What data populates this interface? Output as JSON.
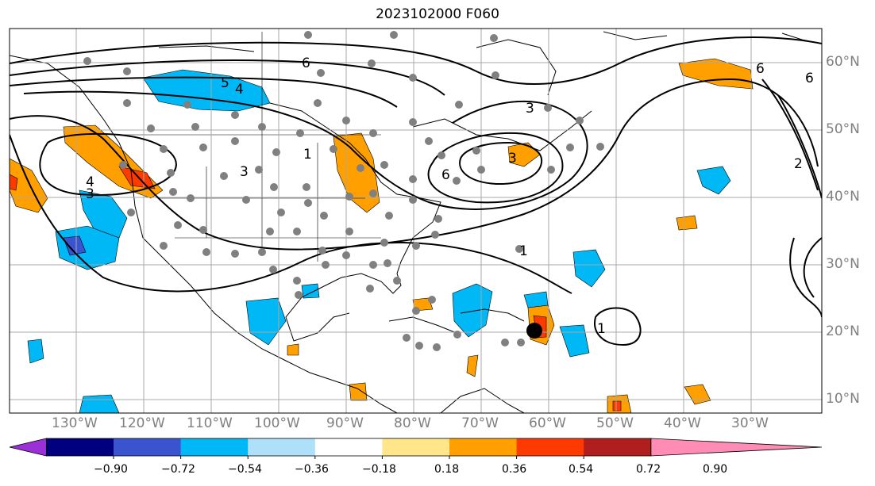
{
  "title": "2023102000 F060",
  "lat_labels": [
    "60°N",
    "50°N",
    "40°N",
    "30°N",
    "20°N",
    "10°N"
  ],
  "lon_labels": [
    "130°W",
    "120°W",
    "110°W",
    "100°W",
    "90°W",
    "80°W",
    "70°W",
    "60°W",
    "50°W",
    "40°W",
    "30°W"
  ],
  "colorbar": {
    "ticks": [
      "−0.90",
      "−0.72",
      "−0.54",
      "−0.36",
      "−0.18",
      "0.18",
      "0.36",
      "0.54",
      "0.72",
      "0.90"
    ],
    "colors": [
      "#9b30d9",
      "#00007f",
      "#3a54cf",
      "#00b8f5",
      "#aee0fa",
      "#ffffff",
      "#ffe68a",
      "#ffa000",
      "#ff3a00",
      "#b01e1e",
      "#ff8cb4"
    ]
  },
  "contour_labels": [
    "6",
    "5",
    "4",
    "1",
    "3",
    "3",
    "6",
    "3",
    "4",
    "3",
    "6",
    "6",
    "2",
    "1",
    "1"
  ],
  "storm_marker_color": "#000000",
  "station_color": "#808080"
}
